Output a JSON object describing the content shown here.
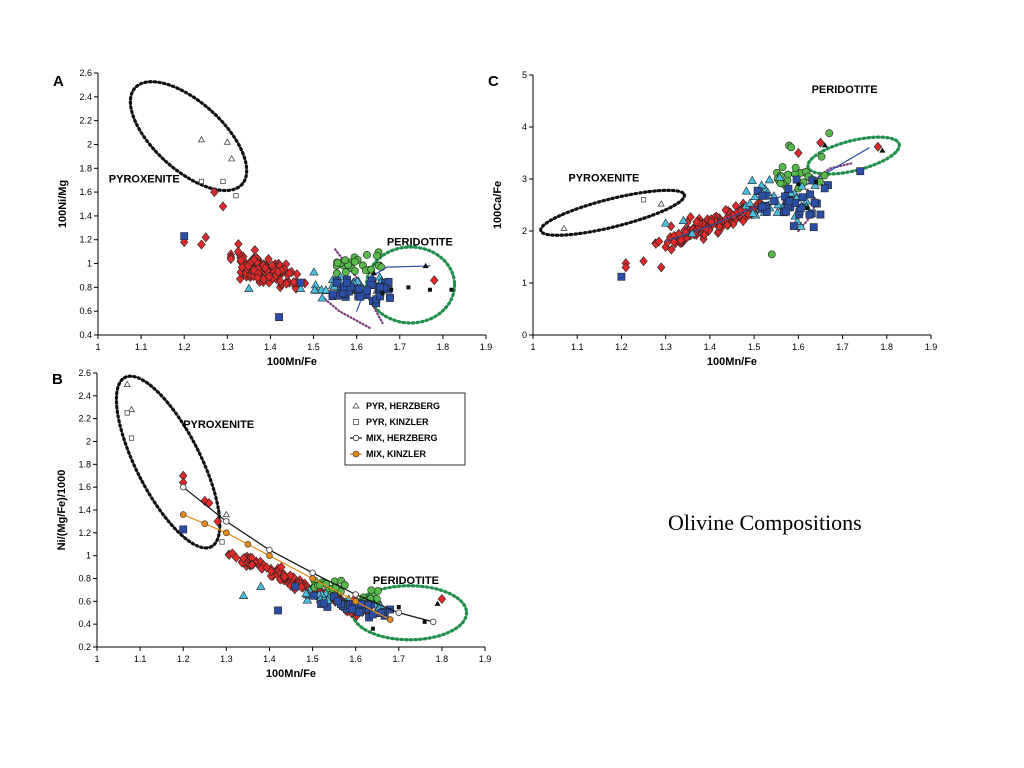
{
  "slide_title": "Olivine Compositions",
  "colors": {
    "pyroxenite_red": "#e02a2a",
    "cyan": "#4bbfe0",
    "green": "#56b94a",
    "blue": "#2b4ea6",
    "orange": "#e58a14",
    "pyroxenite_ellipse": "#111111",
    "peridotite_ellipse": "#1f8f4a",
    "purple_dots": "#7b3a7a"
  },
  "chart_data": [
    {
      "panel": "A",
      "type": "scatter",
      "xlabel": "100Mn/Fe",
      "ylabel": "100Ni/Mg",
      "xlim": [
        1,
        1.9
      ],
      "ylim": [
        0.4,
        2.6
      ],
      "xticks": [
        "1",
        "1.1",
        "1.2",
        "1.3",
        "1.4",
        "1.5",
        "1.6",
        "1.7",
        "1.8",
        "1.9"
      ],
      "yticks": [
        "0.4",
        "0.6",
        "0.8",
        "1",
        "1.2",
        "1.4",
        "1.6",
        "1.8",
        "2",
        "2.2",
        "2.4",
        "2.6"
      ],
      "labels": {
        "pyroxenite": "PYROXENITE",
        "peridotite": "PERIDOTITE"
      }
    },
    {
      "panel": "B",
      "type": "scatter",
      "xlabel": "100Mn/Fe",
      "ylabel": "Ni/(Mg/Fe)/1000",
      "xlim": [
        1,
        1.9
      ],
      "ylim": [
        0.2,
        2.6
      ],
      "xticks": [
        "1",
        "1.1",
        "1.2",
        "1.3",
        "1.4",
        "1.5",
        "1.6",
        "1.7",
        "1.8",
        "1.9"
      ],
      "yticks": [
        "0.2",
        "0.4",
        "0.6",
        "0.8",
        "1",
        "1.2",
        "1.4",
        "1.6",
        "1.8",
        "2",
        "2.2",
        "2.4",
        "2.6"
      ],
      "labels": {
        "pyroxenite": "PYROXENITE",
        "peridotite": "PERIDOTITE"
      },
      "legend": [
        {
          "symbol": "triangle",
          "text": "PYR, HERZBERG"
        },
        {
          "symbol": "square",
          "text": "PYR, KINZLER"
        },
        {
          "symbol": "circle-line",
          "text": "MIX, HERZBERG"
        },
        {
          "symbol": "circle-line-orange",
          "text": "MIX, KINZLER"
        }
      ],
      "mix_herzberg": {
        "x": [
          1.2,
          1.3,
          1.4,
          1.5,
          1.6,
          1.7,
          1.78
        ],
        "y": [
          1.6,
          1.3,
          1.05,
          0.85,
          0.66,
          0.5,
          0.42
        ]
      },
      "mix_kinzler": {
        "x": [
          1.2,
          1.25,
          1.3,
          1.35,
          1.4,
          1.5,
          1.6,
          1.68
        ],
        "y": [
          1.36,
          1.28,
          1.2,
          1.1,
          1.0,
          0.8,
          0.6,
          0.44
        ]
      }
    },
    {
      "panel": "C",
      "type": "scatter",
      "xlabel": "100Mn/Fe",
      "ylabel": "100Ca/Fe",
      "xlim": [
        1,
        1.9
      ],
      "ylim": [
        0,
        5
      ],
      "xticks": [
        "1",
        "1.1",
        "1.2",
        "1.3",
        "1.4",
        "1.5",
        "1.6",
        "1.7",
        "1.8",
        "1.9"
      ],
      "yticks": [
        "0",
        "1",
        "2",
        "3",
        "4",
        "5"
      ],
      "labels": {
        "pyroxenite": "PYROXENITE",
        "peridotite": "PERIDOTITE"
      }
    }
  ]
}
